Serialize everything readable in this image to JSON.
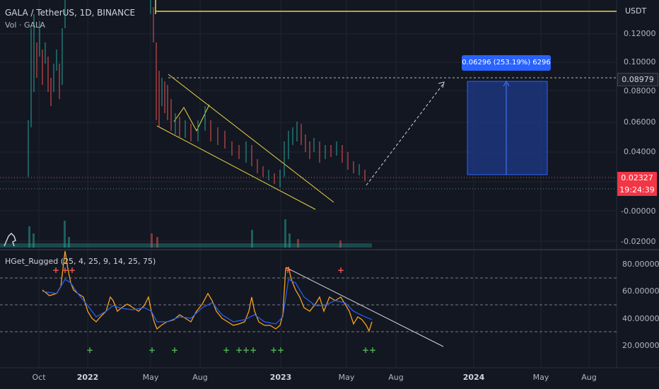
{
  "chart_data": {
    "type": "candlestick",
    "symbol": "GALA / TetherUS, 1D, BINANCE",
    "volume_label": "Vol · GALA",
    "indicator_label": "HGet_Rugged (25, 4, 25, 9, 14, 25, 75)",
    "currency": "USDT",
    "price_axis_ticks": [
      "0.12000",
      "0.10000",
      "0.08000",
      "0.06000",
      "0.04000",
      "-0.00000",
      "-0.02000"
    ],
    "indicator_axis_ticks": [
      "80.000000",
      "60.000000",
      "40.000000",
      "20.000000"
    ],
    "time_axis_labels": [
      "Oct",
      "2022",
      "May",
      "Aug",
      "2023",
      "May",
      "Aug",
      "2024",
      "May",
      "Aug"
    ],
    "current_price": "0.02327",
    "countdown": "19:24:39",
    "target_price": "0.08979",
    "measure_text": "0.06296 (253.19%) 6296",
    "colors": {
      "up": "#26a69a",
      "down": "#ef5350",
      "line": "#f7a21b",
      "signal": "#2962ff",
      "channel": "#e5d544",
      "accent": "#2962ff"
    }
  }
}
